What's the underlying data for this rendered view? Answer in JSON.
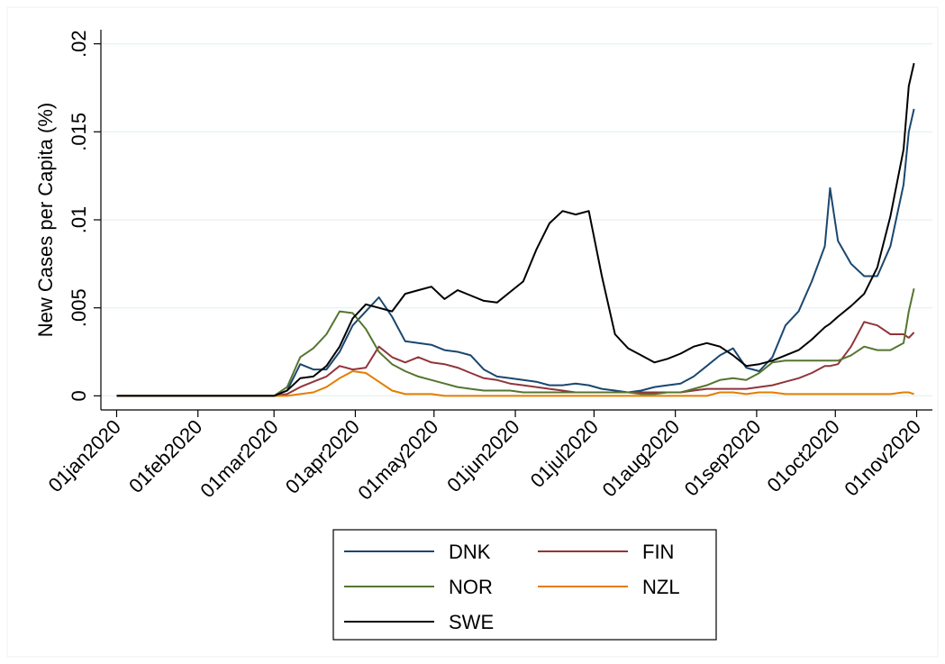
{
  "chart_data": {
    "type": "line",
    "y_label": "New Cases per Capita (%)",
    "x": [
      "2020-01-01",
      "2020-01-31",
      "2020-02-25",
      "2020-03-01",
      "2020-03-06",
      "2020-03-11",
      "2020-03-16",
      "2020-03-21",
      "2020-03-26",
      "2020-03-31",
      "2020-04-05",
      "2020-04-10",
      "2020-04-15",
      "2020-04-20",
      "2020-04-25",
      "2020-04-30",
      "2020-05-05",
      "2020-05-10",
      "2020-05-15",
      "2020-05-20",
      "2020-05-25",
      "2020-05-30",
      "2020-06-04",
      "2020-06-09",
      "2020-06-14",
      "2020-06-19",
      "2020-06-24",
      "2020-06-29",
      "2020-07-04",
      "2020-07-09",
      "2020-07-14",
      "2020-07-19",
      "2020-07-24",
      "2020-07-29",
      "2020-08-03",
      "2020-08-08",
      "2020-08-13",
      "2020-08-18",
      "2020-08-23",
      "2020-08-28",
      "2020-09-02",
      "2020-09-07",
      "2020-09-12",
      "2020-09-17",
      "2020-09-22",
      "2020-09-27",
      "2020-09-29",
      "2020-10-02",
      "2020-10-07",
      "2020-10-12",
      "2020-10-17",
      "2020-10-22",
      "2020-10-27",
      "2020-10-29",
      "2020-10-31"
    ],
    "series": [
      {
        "name": "DNK",
        "color": "#1a476f",
        "values": [
          0,
          0,
          0,
          0,
          0.0003,
          0.0018,
          0.0015,
          0.0015,
          0.0025,
          0.004,
          0.0048,
          0.0056,
          0.0045,
          0.0031,
          0.003,
          0.0029,
          0.0026,
          0.0025,
          0.0023,
          0.0015,
          0.0011,
          0.001,
          0.0009,
          0.0008,
          0.0006,
          0.0006,
          0.0007,
          0.0006,
          0.0004,
          0.0003,
          0.0002,
          0.0003,
          0.0005,
          0.0006,
          0.0007,
          0.0011,
          0.0017,
          0.0023,
          0.0027,
          0.0016,
          0.0014,
          0.0022,
          0.004,
          0.0048,
          0.0065,
          0.0085,
          0.0118,
          0.0088,
          0.0075,
          0.0068,
          0.0068,
          0.0085,
          0.012,
          0.015,
          0.0163
        ]
      },
      {
        "name": "FIN",
        "color": "#90353b",
        "values": [
          0,
          0,
          0,
          0,
          0.0001,
          0.0005,
          0.0008,
          0.0011,
          0.0017,
          0.0015,
          0.0016,
          0.0028,
          0.0022,
          0.0019,
          0.0022,
          0.0019,
          0.0018,
          0.0016,
          0.0013,
          0.001,
          0.0009,
          0.0007,
          0.0006,
          0.0005,
          0.0004,
          0.0003,
          0.0002,
          0.0002,
          0.0002,
          0.0002,
          0.0002,
          0.0002,
          0.0002,
          0.0002,
          0.0002,
          0.0003,
          0.0004,
          0.0004,
          0.0004,
          0.0004,
          0.0005,
          0.0006,
          0.0008,
          0.001,
          0.0013,
          0.0017,
          0.0017,
          0.0018,
          0.0028,
          0.0042,
          0.004,
          0.0035,
          0.0035,
          0.0033,
          0.0036
        ]
      },
      {
        "name": "NOR",
        "color": "#55752f",
        "values": [
          0,
          0,
          0,
          0,
          0.0005,
          0.0022,
          0.0027,
          0.0035,
          0.0048,
          0.0047,
          0.0038,
          0.0025,
          0.0018,
          0.0014,
          0.0011,
          0.0009,
          0.0007,
          0.0005,
          0.0004,
          0.0003,
          0.0003,
          0.0003,
          0.0002,
          0.0002,
          0.0002,
          0.0002,
          0.0002,
          0.0002,
          0.0002,
          0.0002,
          0.0002,
          0.0001,
          0.0001,
          0.0002,
          0.0002,
          0.0004,
          0.0006,
          0.0009,
          0.001,
          0.0009,
          0.0013,
          0.0019,
          0.002,
          0.002,
          0.002,
          0.002,
          0.002,
          0.002,
          0.0023,
          0.0028,
          0.0026,
          0.0026,
          0.003,
          0.0048,
          0.0061
        ]
      },
      {
        "name": "NZL",
        "color": "#e37e00",
        "values": [
          0,
          0,
          0,
          0,
          0,
          0.0001,
          0.0002,
          0.0005,
          0.001,
          0.0014,
          0.0013,
          0.0008,
          0.0003,
          0.0001,
          0.0001,
          0.0001,
          0,
          0,
          0,
          0,
          0,
          0,
          0,
          0,
          0,
          0,
          0,
          0,
          0,
          0,
          0,
          0,
          0,
          0,
          0,
          0,
          0,
          0.0002,
          0.0002,
          0.0001,
          0.0002,
          0.0002,
          0.0001,
          0.0001,
          0.0001,
          0.0001,
          0.0001,
          0.0001,
          0.0001,
          0.0001,
          0.0001,
          0.0001,
          0.0002,
          0.0002,
          0.0001
        ]
      },
      {
        "name": "SWE",
        "color": "#000000",
        "values": [
          0,
          0,
          0,
          0,
          0.0003,
          0.001,
          0.0011,
          0.0017,
          0.0028,
          0.0044,
          0.0052,
          0.005,
          0.0048,
          0.0058,
          0.006,
          0.0062,
          0.0055,
          0.006,
          0.0057,
          0.0054,
          0.0053,
          0.0059,
          0.0065,
          0.0083,
          0.0098,
          0.0105,
          0.0103,
          0.0105,
          0.0068,
          0.0035,
          0.0027,
          0.0023,
          0.0019,
          0.0021,
          0.0024,
          0.0028,
          0.003,
          0.0028,
          0.0023,
          0.0017,
          0.0018,
          0.002,
          0.0023,
          0.0026,
          0.0032,
          0.0039,
          0.0041,
          0.0045,
          0.0051,
          0.0058,
          0.0073,
          0.0102,
          0.014,
          0.0176,
          0.0189
        ]
      }
    ],
    "xlim": [
      "2019-12-26",
      "2020-11-07"
    ],
    "xticks": [
      {
        "value": "2020-01-01",
        "label": "01jan2020"
      },
      {
        "value": "2020-02-01",
        "label": "01feb2020"
      },
      {
        "value": "2020-03-01",
        "label": "01mar2020"
      },
      {
        "value": "2020-04-01",
        "label": "01apr2020"
      },
      {
        "value": "2020-05-01",
        "label": "01may2020"
      },
      {
        "value": "2020-06-01",
        "label": "01jun2020"
      },
      {
        "value": "2020-07-01",
        "label": "01jul2020"
      },
      {
        "value": "2020-08-01",
        "label": "01aug2020"
      },
      {
        "value": "2020-09-01",
        "label": "01sep2020"
      },
      {
        "value": "2020-10-01",
        "label": "01oct2020"
      },
      {
        "value": "2020-11-01",
        "label": "01nov2020"
      }
    ],
    "ylim": [
      -0.0008,
      0.0208
    ],
    "yticks": [
      0,
      {
        "value": 0.005,
        "label": ".005"
      },
      {
        "value": 0.01,
        "label": ".01"
      },
      {
        "value": 0.015,
        "label": ".015"
      },
      {
        "value": 0.02,
        "label": ".02"
      }
    ],
    "grid": true,
    "legend": "bottom"
  }
}
